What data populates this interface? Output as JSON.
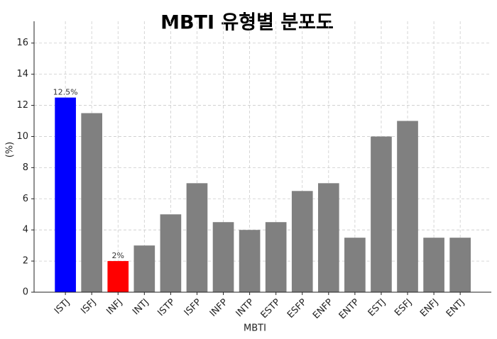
{
  "chart_data": {
    "type": "bar",
    "title": "MBTI 유형별 분포도",
    "x_label": "MBTI",
    "y_label": "(%)",
    "categories": [
      "ISTJ",
      "ISFJ",
      "INFJ",
      "INTJ",
      "ISTP",
      "ISFP",
      "INFP",
      "INTP",
      "ESTP",
      "ESFP",
      "ENFP",
      "ENTP",
      "ESTJ",
      "ESFJ",
      "ENFJ",
      "ENTJ"
    ],
    "values": [
      12.5,
      11.5,
      2,
      3,
      5,
      7,
      4.5,
      4,
      4.5,
      6.5,
      7,
      3.5,
      10,
      11,
      3.5,
      3.5
    ],
    "value_labels": [
      "12.5%",
      null,
      "2%",
      null,
      null,
      null,
      null,
      null,
      null,
      null,
      null,
      null,
      null,
      null,
      null,
      null
    ],
    "colors": [
      "#0000ff",
      "#808080",
      "#ff0000",
      "#808080",
      "#808080",
      "#808080",
      "#808080",
      "#808080",
      "#808080",
      "#808080",
      "#808080",
      "#808080",
      "#808080",
      "#808080",
      "#808080",
      "#808080"
    ],
    "ylim": [
      0,
      17.4
    ],
    "yticks": [
      0,
      2,
      4,
      6,
      8,
      10,
      12,
      14,
      16
    ],
    "grid": true
  }
}
